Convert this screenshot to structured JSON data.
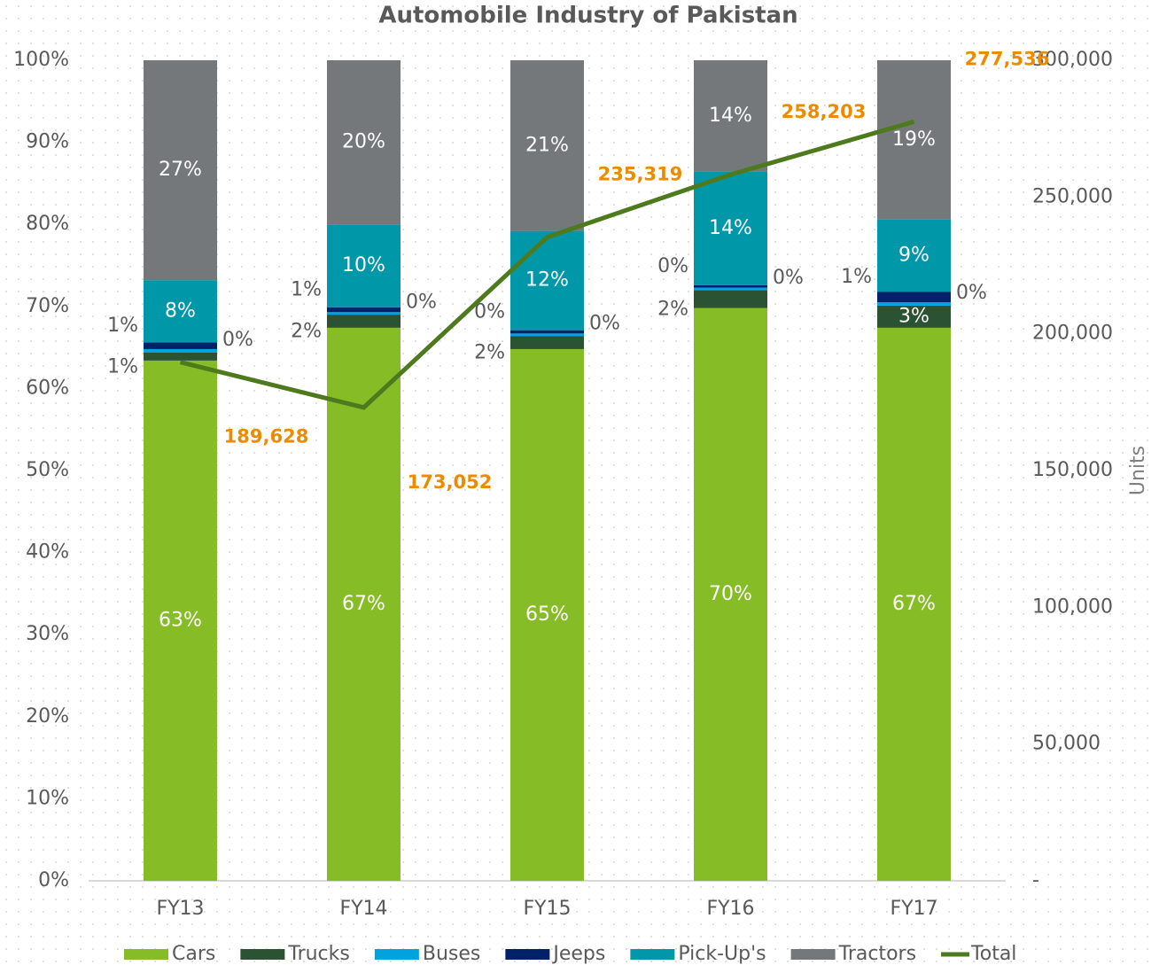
{
  "chart_data": {
    "type": "bar",
    "stacked": true,
    "title": "Automobile Industry of Pakistan",
    "y2_label": "Units",
    "categories": [
      "FY13",
      "FY14",
      "FY15",
      "FY16",
      "FY17"
    ],
    "ylim": [
      0,
      100
    ],
    "yticks": [
      {
        "value": 0,
        "label": "0%"
      },
      {
        "value": 10,
        "label": "10%"
      },
      {
        "value": 20,
        "label": "20%"
      },
      {
        "value": 30,
        "label": "30%"
      },
      {
        "value": 40,
        "label": "40%"
      },
      {
        "value": 50,
        "label": "50%"
      },
      {
        "value": 60,
        "label": "60%"
      },
      {
        "value": 70,
        "label": "70%"
      },
      {
        "value": 80,
        "label": "80%"
      },
      {
        "value": 90,
        "label": "90%"
      },
      {
        "value": 100,
        "label": "100%"
      }
    ],
    "y2lim": [
      0,
      300000
    ],
    "y2ticks": [
      {
        "value": 0,
        "label": "-"
      },
      {
        "value": 50000,
        "label": "50,000"
      },
      {
        "value": 100000,
        "label": "100,000"
      },
      {
        "value": 150000,
        "label": "150,000"
      },
      {
        "value": 200000,
        "label": "200,000"
      },
      {
        "value": 250000,
        "label": "250,000"
      },
      {
        "value": 300000,
        "label": "300,000"
      }
    ],
    "legend": "bottom",
    "series": [
      {
        "name": "Cars",
        "color": "#86bc25",
        "values": [
          63.4,
          67.4,
          64.8,
          69.8,
          67.4
        ],
        "value_labels": [
          "63%",
          "67%",
          "65%",
          "70%",
          "67%"
        ]
      },
      {
        "name": "Trucks",
        "color": "#2c5234",
        "values": [
          1.0,
          1.6,
          1.6,
          2.2,
          2.7
        ],
        "value_labels": [
          "1%",
          "2%",
          "2%",
          "2%",
          "3%"
        ]
      },
      {
        "name": "Buses",
        "color": "#00a3e0",
        "values": [
          0.4,
          0.3,
          0.3,
          0.3,
          0.4
        ],
        "value_labels": [
          "0%",
          "0%",
          "0%",
          "0%",
          "0%"
        ]
      },
      {
        "name": "Jeeps",
        "color": "#012169",
        "values": [
          0.8,
          0.6,
          0.4,
          0.3,
          1.3
        ],
        "value_labels": [
          "1%",
          "1%",
          "0%",
          "0%",
          "1%"
        ]
      },
      {
        "name": "Pick-Up's",
        "color": "#0097a9",
        "values": [
          7.6,
          10.1,
          12.1,
          13.8,
          8.8
        ],
        "value_labels": [
          "8%",
          "10%",
          "12%",
          "14%",
          "9%"
        ]
      },
      {
        "name": "Tractors",
        "color": "#75787b",
        "values": [
          26.8,
          20.0,
          20.8,
          13.6,
          19.4
        ],
        "value_labels": [
          "27%",
          "20%",
          "21%",
          "14%",
          "19%"
        ]
      },
      {
        "name": "Total",
        "color": "#4e7a1e",
        "type": "line",
        "axis": "y2",
        "values": [
          189628,
          173052,
          235319,
          258203,
          277536
        ],
        "value_labels": [
          "189,628",
          "173,052",
          "235,319",
          "258,203",
          "277,536"
        ]
      }
    ]
  }
}
